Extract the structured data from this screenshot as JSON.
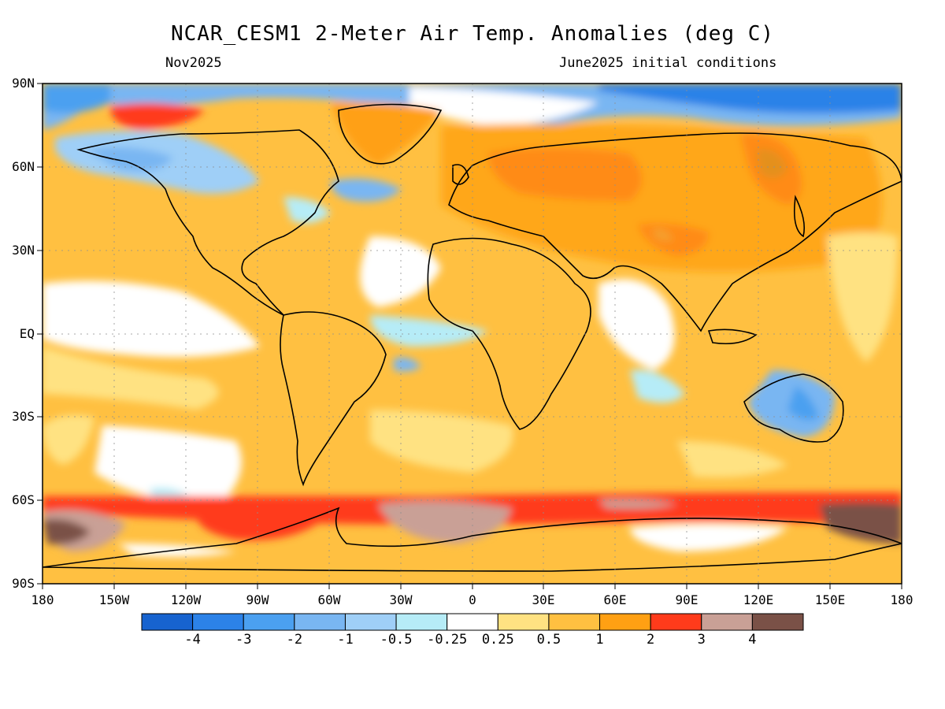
{
  "title": "NCAR_CESM1 2-Meter Air Temp. Anomalies (deg C)",
  "subtitle_left": "Nov2025",
  "subtitle_right": "June2025 initial conditions",
  "lat_labels": [
    "90N",
    "60N",
    "30N",
    "EQ",
    "30S",
    "60S",
    "90S"
  ],
  "lon_labels": [
    "180",
    "150W",
    "120W",
    "90W",
    "60W",
    "30W",
    "0",
    "30E",
    "60E",
    "90E",
    "120E",
    "150E",
    "180"
  ],
  "colorbar": {
    "labels": [
      "-4",
      "-3",
      "-2",
      "-1",
      "-0.5",
      "-0.25",
      "0.25",
      "0.5",
      "1",
      "2",
      "3",
      "4"
    ],
    "colors": [
      "#1763cf",
      "#2c82e8",
      "#4ba0f0",
      "#79b6f2",
      "#9fcff7",
      "#b6ecf7",
      "#ffffff",
      "#ffe282",
      "#ffc041",
      "#ffa013",
      "#ff3b1b",
      "#c9a096",
      "#7a5147"
    ]
  },
  "map_colors": {
    "ocean_base": "#ffc041",
    "land_base": "#ffc041",
    "outline": "#000000",
    "grid": "#9a9a9a"
  }
}
